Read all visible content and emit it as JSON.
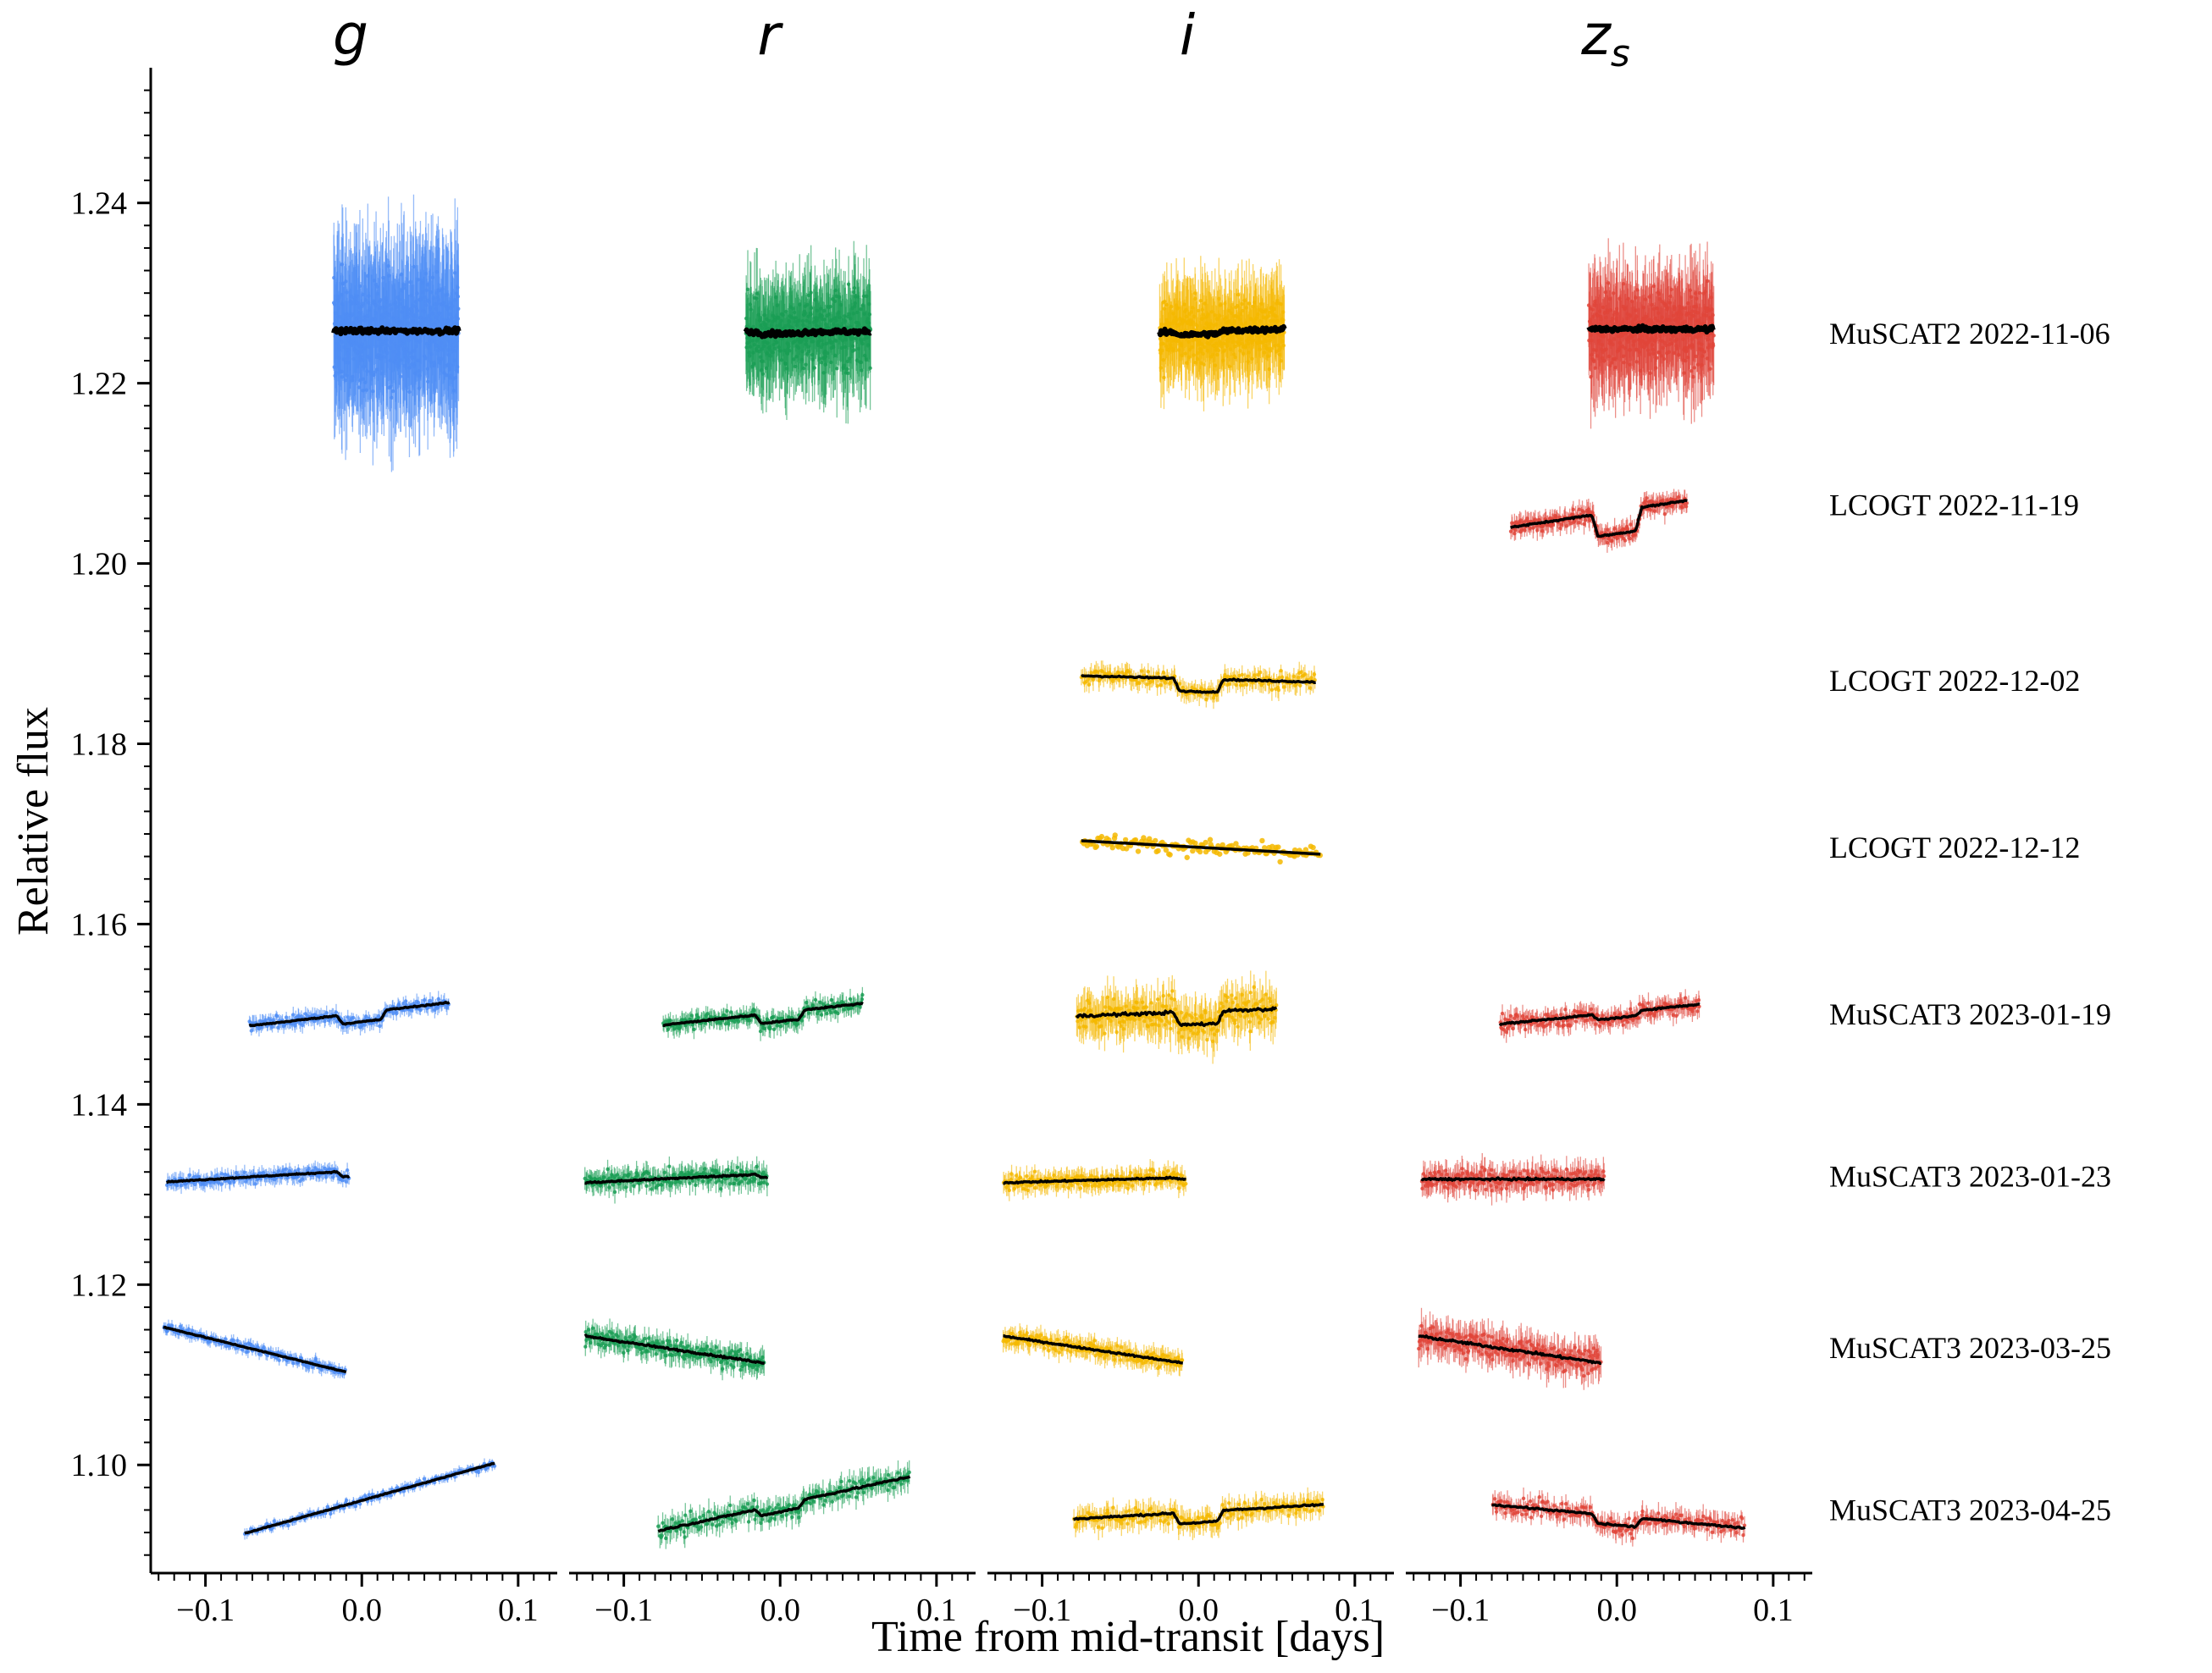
{
  "chart_data": {
    "type": "scatter",
    "xlabel": "Time from mid-transit [days]",
    "ylabel": "Relative flux",
    "ylim": [
      1.088,
      1.255
    ],
    "xlim": [
      -0.135,
      0.125
    ],
    "y_ticks": [
      1.1,
      1.12,
      1.14,
      1.16,
      1.18,
      1.2,
      1.22,
      1.24
    ],
    "y_tick_labels": [
      "1.10",
      "1.12",
      "1.14",
      "1.16",
      "1.18",
      "1.20",
      "1.22",
      "1.24"
    ],
    "x_ticks": [
      -0.1,
      0.0,
      0.1
    ],
    "x_tick_labels": [
      "−0.1",
      "0.0",
      "0.1"
    ],
    "grid": false,
    "panels": [
      {
        "band": "g",
        "color": "#4f8df5"
      },
      {
        "band": "r",
        "color": "#1a9e55"
      },
      {
        "band": "i",
        "color": "#f5b800"
      },
      {
        "band": "z",
        "sub": "s",
        "color": "#e0453a"
      }
    ],
    "observations": [
      {
        "label": "MuSCAT2 2022-11-06",
        "baseline": 1.2255,
        "segments": [
          {
            "band": "g",
            "x": [
              -0.018,
              0.062
            ],
            "level": 1.2258,
            "scatter": 0.0085,
            "trend": 0.0,
            "dip": 0.0,
            "shape": "errorbar"
          },
          {
            "band": "r",
            "x": [
              -0.022,
              0.058
            ],
            "level": 1.2257,
            "scatter": 0.0055,
            "trend": 0.0,
            "dip": 0.0002,
            "shape": "errorbar"
          },
          {
            "band": "i",
            "x": [
              -0.025,
              0.055
            ],
            "level": 1.2258,
            "scatter": 0.005,
            "trend": 0.0004,
            "dip": 0.0003,
            "shape": "errorbar"
          },
          {
            "band": "z",
            "x": [
              -0.018,
              0.062
            ],
            "level": 1.226,
            "scatter": 0.0058,
            "trend": 0.0,
            "dip": 0.0,
            "shape": "errorbar"
          }
        ]
      },
      {
        "label": "LCOGT 2022-11-19",
        "baseline": 1.2065,
        "segments": [
          {
            "band": "z",
            "x": [
              -0.068,
              0.045
            ],
            "level": 1.2055,
            "scatter": 0.0012,
            "trend": 0.003,
            "dip": 0.0025,
            "shape": "errorbar"
          }
        ]
      },
      {
        "label": "LCOGT 2022-12-02",
        "baseline": 1.187,
        "segments": [
          {
            "band": "i",
            "x": [
              -0.075,
              0.075
            ],
            "level": 1.1872,
            "scatter": 0.0012,
            "trend": -0.0007,
            "dip": 0.0014,
            "shape": "errorbar"
          }
        ]
      },
      {
        "label": "LCOGT 2022-12-12",
        "baseline": 1.1685,
        "segments": [
          {
            "band": "i",
            "x": [
              -0.075,
              0.078
            ],
            "level": 1.1685,
            "scatter": 0.0012,
            "trend": -0.0015,
            "dip": 0.0,
            "shape": "points"
          }
        ]
      },
      {
        "label": "MuSCAT3 2023-01-19",
        "baseline": 1.15,
        "segments": [
          {
            "band": "g",
            "x": [
              -0.072,
              0.056
            ],
            "level": 1.15,
            "scatter": 0.0009,
            "trend": 0.0026,
            "dip": 0.001,
            "shape": "errorbar"
          },
          {
            "band": "r",
            "x": [
              -0.075,
              0.053
            ],
            "level": 1.15,
            "scatter": 0.0011,
            "trend": 0.0024,
            "dip": 0.001,
            "shape": "errorbar"
          },
          {
            "band": "i",
            "x": [
              -0.078,
              0.05
            ],
            "level": 1.1502,
            "scatter": 0.0025,
            "trend": 0.0008,
            "dip": 0.0014,
            "shape": "errorbar"
          },
          {
            "band": "z",
            "x": [
              -0.075,
              0.053
            ],
            "level": 1.15,
            "scatter": 0.0012,
            "trend": 0.0022,
            "dip": 0.0006,
            "shape": "errorbar"
          }
        ]
      },
      {
        "label": "MuSCAT3 2023-01-23",
        "baseline": 1.132,
        "segments": [
          {
            "band": "g",
            "x": [
              -0.125,
              -0.008
            ],
            "level": 1.132,
            "scatter": 0.0009,
            "trend": 0.0012,
            "dip": 0.0006,
            "shape": "errorbar"
          },
          {
            "band": "r",
            "x": [
              -0.125,
              -0.008
            ],
            "level": 1.1318,
            "scatter": 0.0013,
            "trend": 0.001,
            "dip": 0.0004,
            "shape": "errorbar"
          },
          {
            "band": "i",
            "x": [
              -0.125,
              -0.008
            ],
            "level": 1.1316,
            "scatter": 0.0012,
            "trend": 0.0006,
            "dip": 0.0002,
            "shape": "errorbar"
          },
          {
            "band": "z",
            "x": [
              -0.125,
              -0.008
            ],
            "level": 1.1317,
            "scatter": 0.0016,
            "trend": 0.0,
            "dip": 0.0,
            "shape": "errorbar"
          }
        ]
      },
      {
        "label": "MuSCAT3 2023-03-25",
        "baseline": 1.113,
        "segments": [
          {
            "band": "g",
            "x": [
              -0.127,
              -0.01
            ],
            "level": 1.1128,
            "scatter": 0.0007,
            "trend": -0.005,
            "dip": 0.0,
            "shape": "errorbar"
          },
          {
            "band": "r",
            "x": [
              -0.125,
              -0.01
            ],
            "level": 1.1128,
            "scatter": 0.0014,
            "trend": -0.003,
            "dip": 0.0,
            "shape": "errorbar"
          },
          {
            "band": "i",
            "x": [
              -0.125,
              -0.01
            ],
            "level": 1.1128,
            "scatter": 0.0012,
            "trend": -0.003,
            "dip": 0.0,
            "shape": "errorbar"
          },
          {
            "band": "z",
            "x": [
              -0.127,
              -0.01
            ],
            "level": 1.1128,
            "scatter": 0.002,
            "trend": -0.003,
            "dip": 0.0,
            "shape": "errorbar"
          }
        ]
      },
      {
        "label": "MuSCAT3 2023-04-25",
        "baseline": 1.095,
        "segments": [
          {
            "band": "g",
            "x": [
              -0.075,
              0.085
            ],
            "level": 1.0963,
            "scatter": 0.0006,
            "trend": 0.0078,
            "dip": 0.0,
            "shape": "errorbar"
          },
          {
            "band": "r",
            "x": [
              -0.078,
              0.083
            ],
            "level": 1.0957,
            "scatter": 0.0014,
            "trend": 0.006,
            "dip": 0.0008,
            "shape": "errorbar"
          },
          {
            "band": "i",
            "x": [
              -0.08,
              0.08
            ],
            "level": 1.0948,
            "scatter": 0.0014,
            "trend": 0.0016,
            "dip": 0.0012,
            "shape": "errorbar"
          },
          {
            "band": "z",
            "x": [
              -0.08,
              0.082
            ],
            "level": 1.0943,
            "scatter": 0.0013,
            "trend": -0.0026,
            "dip": 0.001,
            "shape": "errorbar"
          }
        ]
      }
    ]
  }
}
